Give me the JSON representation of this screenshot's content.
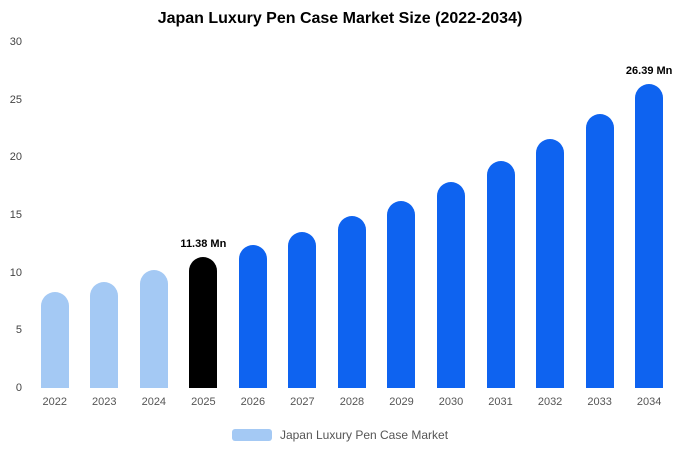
{
  "title": "Japan Luxury Pen Case Market Size (2022-2034)",
  "legend": {
    "label": "Japan Luxury Pen Case Market",
    "swatch_color": "#A4C9F4"
  },
  "colors": {
    "historical": "#A4C9F4",
    "base_year": "#000000",
    "forecast": "#0E63F0"
  },
  "chart_data": {
    "type": "bar",
    "title": "Japan Luxury Pen Case Market Size (2022-2034)",
    "categories": [
      "2022",
      "2023",
      "2024",
      "2025",
      "2026",
      "2027",
      "2028",
      "2029",
      "2030",
      "2031",
      "2032",
      "2033",
      "2034"
    ],
    "values": [
      8.3,
      9.2,
      10.2,
      11.38,
      12.4,
      13.5,
      14.9,
      16.2,
      17.9,
      19.7,
      21.6,
      23.8,
      26.39
    ],
    "bar_colors": [
      "#A4C9F4",
      "#A4C9F4",
      "#A4C9F4",
      "#000000",
      "#0E63F0",
      "#0E63F0",
      "#0E63F0",
      "#0E63F0",
      "#0E63F0",
      "#0E63F0",
      "#0E63F0",
      "#0E63F0",
      "#0E63F0"
    ],
    "annotations": [
      {
        "category": "2025",
        "text": "11.38 Mn"
      },
      {
        "category": "2034",
        "text": "26.39 Mn"
      }
    ],
    "xlabel": "",
    "ylabel": "",
    "ylim": [
      0,
      30
    ],
    "yticks": [
      0,
      5,
      10,
      15,
      20,
      25,
      30
    ],
    "grid": false,
    "legend_position": "bottom"
  }
}
